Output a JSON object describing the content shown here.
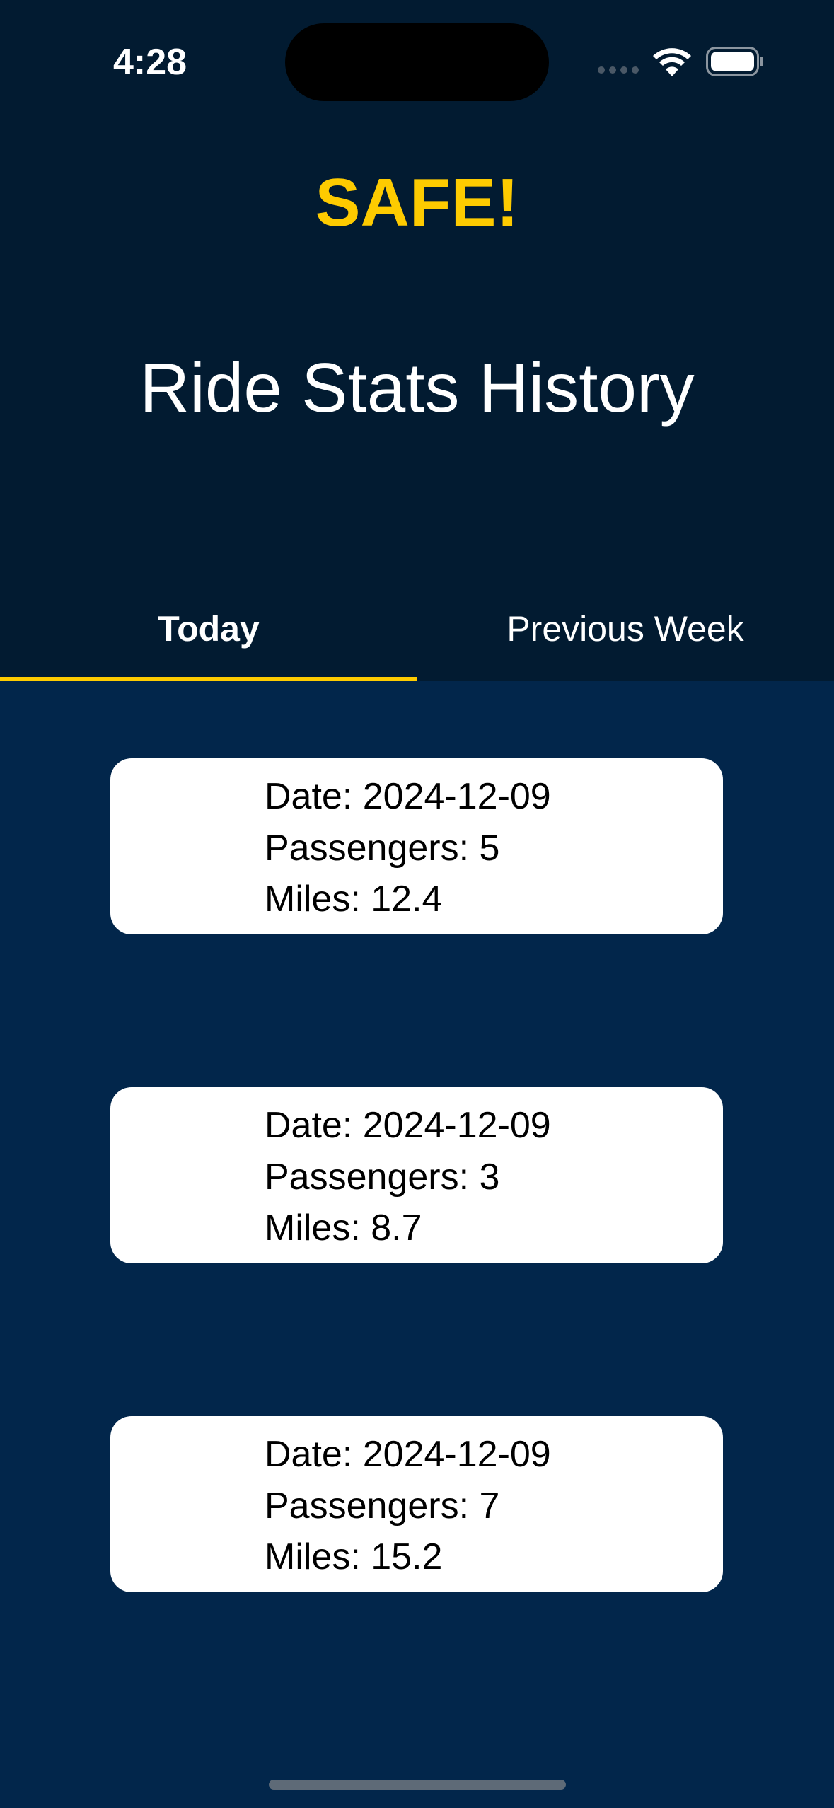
{
  "status_bar": {
    "time": "4:28"
  },
  "app": {
    "title": "SAFE!",
    "title_color": "#fecb00"
  },
  "page": {
    "title": "Ride Stats History"
  },
  "tabs": [
    {
      "label": "Today",
      "selected": true
    },
    {
      "label": "Previous Week",
      "selected": false
    }
  ],
  "rides": [
    {
      "date": "Date: 2024-12-09",
      "passengers": "Passengers: 5",
      "miles": "Miles: 12.4"
    },
    {
      "date": "Date: 2024-12-09",
      "passengers": "Passengers: 3",
      "miles": "Miles: 8.7"
    },
    {
      "date": "Date: 2024-12-09",
      "passengers": "Passengers: 7",
      "miles": "Miles: 15.2"
    }
  ],
  "colors": {
    "header_background": "#021b31",
    "content_background": "#02264b",
    "accent": "#fecb00",
    "card_background": "#ffffff"
  },
  "icons": [
    "signal-icon",
    "wifi-icon",
    "battery-icon"
  ]
}
